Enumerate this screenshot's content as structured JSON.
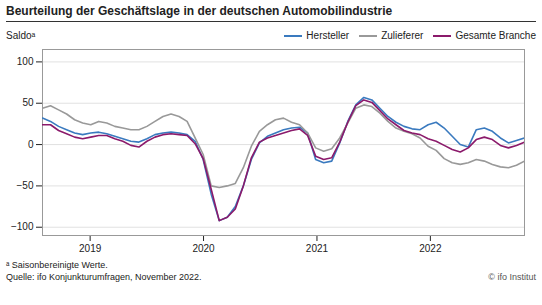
{
  "chart_data": {
    "type": "line",
    "title": "Beurteilung der Geschäftslage in der deutschen Automobilindustrie",
    "ylabel": "Saldoᵃ",
    "x": [
      2018.58,
      2018.650833,
      2018.721667,
      2018.7925,
      2018.863333,
      2018.934167,
      2019.005,
      2019.075833,
      2019.146667,
      2019.2175,
      2019.288333,
      2019.359167,
      2019.43,
      2019.500833,
      2019.571667,
      2019.6425,
      2019.713333,
      2019.784167,
      2019.855,
      2019.925833,
      2019.996667,
      2020.0675,
      2020.138333,
      2020.209167,
      2020.28,
      2020.350833,
      2020.421667,
      2020.4925,
      2020.563333,
      2020.634167,
      2020.705,
      2020.775833,
      2020.846667,
      2020.9175,
      2020.988333,
      2021.059167,
      2021.13,
      2021.200833,
      2021.271667,
      2021.3425,
      2021.413333,
      2021.484167,
      2021.555,
      2021.625833,
      2021.696667,
      2021.7675,
      2021.838333,
      2021.909167,
      2021.98,
      2022.050833,
      2022.121667,
      2022.1925,
      2022.263333,
      2022.334167,
      2022.405,
      2022.475833,
      2022.546667,
      2022.6175,
      2022.688333,
      2022.759167,
      2022.83
    ],
    "series": [
      {
        "name": "Hersteller",
        "color": "#3a7abf",
        "values": [
          32,
          28,
          22,
          18,
          14,
          12,
          14,
          15,
          13,
          10,
          7,
          4,
          3,
          7,
          12,
          14,
          15,
          14,
          12,
          4,
          -18,
          -60,
          -92,
          -88,
          -75,
          -50,
          -18,
          2,
          10,
          14,
          18,
          20,
          21,
          14,
          -18,
          -22,
          -20,
          2,
          28,
          48,
          57,
          54,
          44,
          34,
          27,
          22,
          19,
          18,
          24,
          27,
          20,
          10,
          0,
          -3,
          18,
          20,
          16,
          8,
          2,
          5,
          8
        ]
      },
      {
        "name": "Zulieferer",
        "color": "#999999",
        "values": [
          44,
          47,
          42,
          37,
          30,
          26,
          24,
          28,
          26,
          22,
          20,
          18,
          18,
          22,
          28,
          34,
          37,
          34,
          28,
          8,
          -12,
          -50,
          -52,
          -50,
          -47,
          -28,
          -2,
          16,
          24,
          30,
          32,
          27,
          24,
          14,
          -4,
          -8,
          -5,
          8,
          26,
          44,
          48,
          46,
          38,
          28,
          20,
          16,
          13,
          8,
          -2,
          -7,
          -17,
          -22,
          -24,
          -22,
          -18,
          -20,
          -24,
          -27,
          -28,
          -25,
          -20
        ]
      },
      {
        "name": "Gesamte Branche",
        "color": "#8b1a6b",
        "values": [
          24,
          24,
          17,
          13,
          9,
          7,
          9,
          11,
          11,
          7,
          4,
          -1,
          -3,
          4,
          9,
          12,
          13,
          12,
          11,
          1,
          -17,
          -54,
          -92,
          -88,
          -78,
          -50,
          -16,
          3,
          8,
          11,
          14,
          17,
          19,
          11,
          -14,
          -18,
          -16,
          3,
          27,
          47,
          54,
          51,
          41,
          31,
          24,
          17,
          14,
          12,
          7,
          4,
          -1,
          -6,
          -9,
          -4,
          6,
          9,
          6,
          -1,
          -4,
          -1,
          3
        ]
      }
    ],
    "xlim": [
      2018.58,
      2022.83
    ],
    "xticks": [
      2019,
      2020,
      2021,
      2022
    ],
    "ylim": [
      -110,
      115
    ],
    "yticks": [
      -100,
      -50,
      0,
      50,
      100
    ],
    "grid": true,
    "legend": "top-right",
    "annotations": [
      "ᵃ Saisonbereinigte Werte.",
      "Quelle: ifo Konjunkturumfragen, November 2022.",
      "© ifo Institut"
    ]
  }
}
